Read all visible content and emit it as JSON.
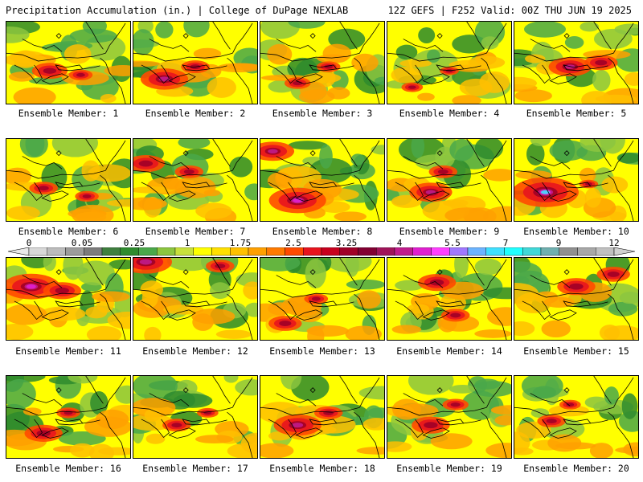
{
  "header": {
    "left_title": "Precipitation Accumulation (in.) | College of DuPage NEXLAB",
    "right_title": "12Z GEFS | F252 Valid: 00Z THU JUN 19 2025"
  },
  "members": [
    {
      "label": "Ensemble Member: 1",
      "hot": [
        [
          0.35,
          0.6,
          0.75
        ],
        [
          0.6,
          0.65,
          0.5
        ]
      ],
      "wet": 0.45
    },
    {
      "label": "Ensemble Member: 2",
      "hot": [
        [
          0.25,
          0.7,
          1.0
        ],
        [
          0.5,
          0.55,
          0.6
        ]
      ],
      "wet": 0.55
    },
    {
      "label": "Ensemble Member: 3",
      "hot": [
        [
          0.3,
          0.75,
          0.55
        ],
        [
          0.55,
          0.55,
          0.5
        ]
      ],
      "wet": 0.4
    },
    {
      "label": "Ensemble Member: 4",
      "hot": [
        [
          0.2,
          0.8,
          0.45
        ],
        [
          0.5,
          0.6,
          0.4
        ]
      ],
      "wet": 0.3
    },
    {
      "label": "Ensemble Member: 5",
      "hot": [
        [
          0.45,
          0.55,
          0.9
        ],
        [
          0.7,
          0.5,
          0.7
        ]
      ],
      "wet": 0.6
    },
    {
      "label": "Ensemble Member: 6",
      "hot": [
        [
          0.3,
          0.6,
          0.6
        ],
        [
          0.65,
          0.7,
          0.5
        ]
      ],
      "wet": 0.4
    },
    {
      "label": "Ensemble Member: 7",
      "hot": [
        [
          0.1,
          0.3,
          0.8
        ],
        [
          0.45,
          0.4,
          0.6
        ]
      ],
      "wet": 0.5
    },
    {
      "label": "Ensemble Member: 8",
      "hot": [
        [
          0.3,
          0.75,
          1.2
        ],
        [
          0.1,
          0.15,
          0.9
        ]
      ],
      "wet": 0.7
    },
    {
      "label": "Ensemble Member: 9",
      "hot": [
        [
          0.35,
          0.65,
          0.9
        ],
        [
          0.45,
          0.4,
          0.6
        ]
      ],
      "wet": 0.5
    },
    {
      "label": "Ensemble Member: 10",
      "hot": [
        [
          0.25,
          0.65,
          1.4
        ],
        [
          0.6,
          0.55,
          0.4
        ]
      ],
      "wet": 0.35
    },
    {
      "label": "Ensemble Member: 11",
      "hot": [
        [
          0.2,
          0.35,
          1.2
        ],
        [
          0.45,
          0.4,
          0.8
        ]
      ],
      "wet": 0.6
    },
    {
      "label": "Ensemble Member: 12",
      "hot": [
        [
          0.1,
          0.05,
          1.1
        ],
        [
          0.7,
          0.1,
          0.6
        ]
      ],
      "wet": 0.45
    },
    {
      "label": "Ensemble Member: 13",
      "hot": [
        [
          0.2,
          0.8,
          0.7
        ],
        [
          0.45,
          0.5,
          0.5
        ]
      ],
      "wet": 0.35
    },
    {
      "label": "Ensemble Member: 14",
      "hot": [
        [
          0.4,
          0.3,
          0.8
        ],
        [
          0.55,
          0.7,
          0.6
        ]
      ],
      "wet": 0.45
    },
    {
      "label": "Ensemble Member: 15",
      "hot": [
        [
          0.5,
          0.35,
          0.8
        ],
        [
          0.8,
          0.2,
          0.7
        ]
      ],
      "wet": 0.75
    },
    {
      "label": "Ensemble Member: 16",
      "hot": [
        [
          0.3,
          0.7,
          0.8
        ],
        [
          0.5,
          0.45,
          0.5
        ]
      ],
      "wet": 0.45
    },
    {
      "label": "Ensemble Member: 17",
      "hot": [
        [
          0.35,
          0.6,
          0.6
        ],
        [
          0.6,
          0.45,
          0.45
        ]
      ],
      "wet": 0.3
    },
    {
      "label": "Ensemble Member: 18",
      "hot": [
        [
          0.3,
          0.6,
          1.0
        ],
        [
          0.55,
          0.45,
          0.6
        ]
      ],
      "wet": 0.6
    },
    {
      "label": "Ensemble Member: 19",
      "hot": [
        [
          0.35,
          0.6,
          0.8
        ],
        [
          0.55,
          0.35,
          0.55
        ]
      ],
      "wet": 0.55
    },
    {
      "label": "Ensemble Member: 20",
      "hot": [
        [
          0.3,
          0.55,
          0.6
        ],
        [
          0.45,
          0.35,
          0.45
        ]
      ],
      "wet": 0.35
    }
  ],
  "colorbar": {
    "tick_labels": [
      "0",
      "0.05",
      "0.25",
      "1",
      "1.75",
      "2.5",
      "3.25",
      "4",
      "5.5",
      "7",
      "9",
      "12"
    ],
    "colors": [
      "#d8d8d8",
      "#bcbcbc",
      "#9c9c9c",
      "#7c7c7c",
      "#3f7f3f",
      "#2e8b2e",
      "#4aa84a",
      "#8cc63f",
      "#c8e03c",
      "#ffff00",
      "#ffe000",
      "#ffc000",
      "#ffa000",
      "#ff7a00",
      "#ff4a00",
      "#e8141e",
      "#c8001e",
      "#a00028",
      "#820032",
      "#a0145a",
      "#c01c8c",
      "#e020d0",
      "#ff40ff",
      "#a078ff",
      "#6cb4ff",
      "#40e0ff",
      "#20ffff",
      "#40d8d8",
      "#70b0b0",
      "#909090",
      "#a8a8a8",
      "#c0c0c0"
    ]
  }
}
